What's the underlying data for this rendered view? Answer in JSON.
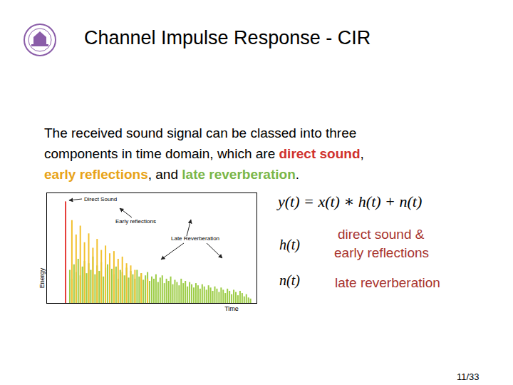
{
  "header": {
    "title": "Channel Impulse Response - CIR"
  },
  "body": {
    "lines": [
      [
        {
          "text": "The received sound signal can be classed into three"
        }
      ],
      [
        {
          "text": "components in time domain, which are "
        },
        {
          "text": "direct sound",
          "color": "#d0312d"
        },
        {
          "text": ","
        }
      ],
      [
        {
          "text": "early reflections",
          "color": "#e8a317"
        },
        {
          "text": ", and "
        },
        {
          "text": "late reverberation",
          "color": "#7ab648"
        },
        {
          "text": "."
        }
      ]
    ]
  },
  "equation": "y(t) = x(t) ∗ h(t) + n(t)",
  "definitions": [
    {
      "symbol": "h(t)",
      "meaning": [
        "direct sound &",
        "early reflections"
      ]
    },
    {
      "symbol": "n(t)",
      "meaning": [
        "late reverberation"
      ]
    }
  ],
  "page": "11/33",
  "chart_data": {
    "type": "bar",
    "x_label": "Time",
    "y_label": "Energy",
    "xlim": [
      0,
      100
    ],
    "ylim": [
      0,
      1
    ],
    "tick_labels": false,
    "series": [
      {
        "name": "Late Reverberation",
        "color": "#9ccc45",
        "x": [
          11,
          12,
          13,
          14,
          15,
          16,
          17,
          18,
          19,
          20,
          21,
          22,
          23,
          24,
          25,
          26,
          27,
          28,
          29,
          30,
          31,
          32,
          33,
          34,
          35,
          36,
          37,
          38,
          39,
          40,
          41,
          42,
          43,
          44,
          45,
          46,
          47,
          48,
          49,
          50,
          51,
          52,
          53,
          54,
          55,
          56,
          57,
          58,
          59,
          60,
          61,
          62,
          63,
          64,
          65,
          66,
          67,
          68,
          69,
          70,
          71,
          72,
          73,
          74,
          75,
          76,
          77,
          78,
          79,
          80,
          81,
          82,
          83,
          84,
          85,
          86,
          87,
          88,
          89,
          90,
          91,
          92,
          93,
          94,
          95,
          96,
          97
        ],
        "values": [
          0.3,
          0.22,
          0.35,
          0.28,
          0.4,
          0.25,
          0.33,
          0.38,
          0.27,
          0.36,
          0.3,
          0.42,
          0.26,
          0.34,
          0.29,
          0.37,
          0.24,
          0.32,
          0.35,
          0.27,
          0.31,
          0.26,
          0.33,
          0.22,
          0.3,
          0.28,
          0.25,
          0.32,
          0.23,
          0.29,
          0.26,
          0.22,
          0.3,
          0.24,
          0.27,
          0.21,
          0.25,
          0.28,
          0.2,
          0.24,
          0.22,
          0.26,
          0.19,
          0.23,
          0.25,
          0.18,
          0.22,
          0.2,
          0.24,
          0.17,
          0.21,
          0.19,
          0.16,
          0.22,
          0.18,
          0.2,
          0.15,
          0.19,
          0.17,
          0.14,
          0.18,
          0.16,
          0.13,
          0.17,
          0.15,
          0.12,
          0.16,
          0.14,
          0.11,
          0.15,
          0.13,
          0.1,
          0.14,
          0.12,
          0.09,
          0.13,
          0.11,
          0.08,
          0.12,
          0.1,
          0.07,
          0.11,
          0.09,
          0.06,
          0.08,
          0.05,
          0.04
        ]
      },
      {
        "name": "Early reflections",
        "color": "#f2c12e",
        "x": [
          12,
          14,
          16,
          18,
          20,
          22,
          24,
          26,
          28,
          30,
          32,
          34,
          36,
          38,
          40,
          42,
          45,
          48
        ],
        "values": [
          0.75,
          0.62,
          0.7,
          0.55,
          0.63,
          0.5,
          0.58,
          0.48,
          0.52,
          0.45,
          0.47,
          0.4,
          0.42,
          0.36,
          0.34,
          0.3,
          0.27,
          0.22
        ]
      },
      {
        "name": "Direct Sound",
        "color": "#e53935",
        "x": [
          9
        ],
        "values": [
          0.92
        ]
      }
    ]
  }
}
